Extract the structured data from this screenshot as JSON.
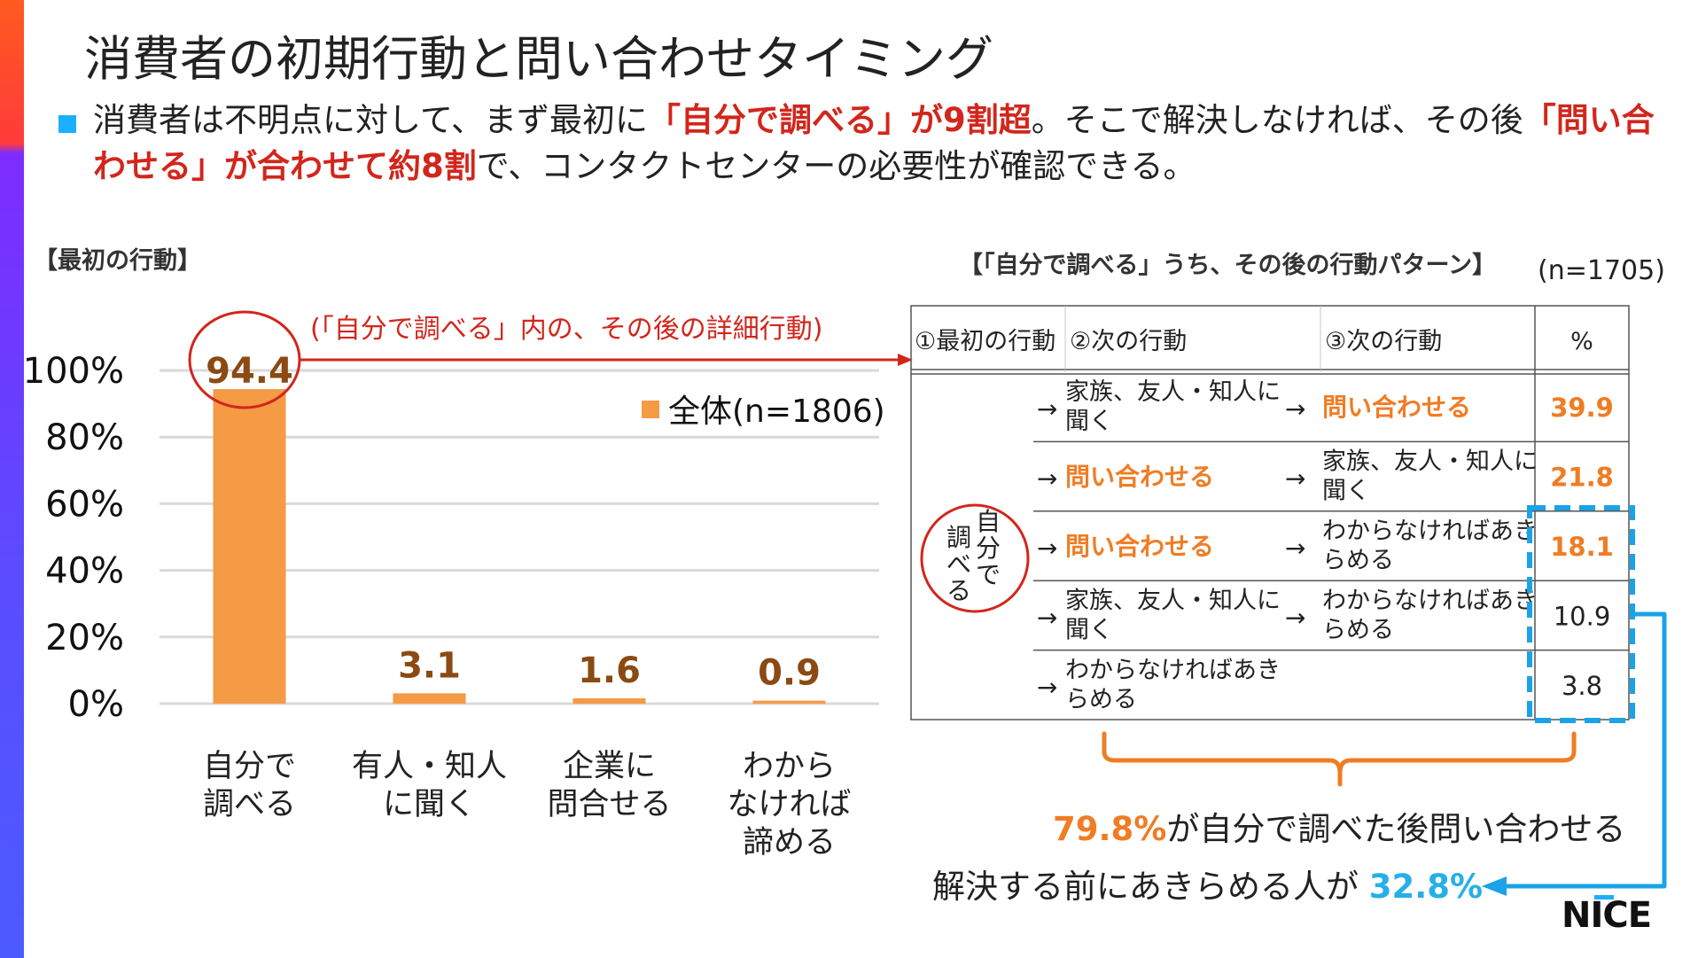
{
  "page": {
    "title": "消費者の初期行動と問い合わせタイミング",
    "lead": [
      {
        "text": "消費者は不明点に対して、まず最初に",
        "red": false
      },
      {
        "text": "「自分で調べる」が9割超",
        "red": true
      },
      {
        "text": "。そこで解決しなければ、その後",
        "red": false
      },
      {
        "text": "「問い合わせる」が合わせて約8割",
        "red": true
      },
      {
        "text": "で、コンタクトセンターの必要性が確認できる。",
        "red": false
      }
    ],
    "left_section_label": "【最初の行動】",
    "right_section_label": "【「自分で調べる」うち、その後の行動パターン】",
    "right_n": "(n=1705)",
    "arrow_caption": "(「自分で調べる」内の、その後の詳細行動)",
    "summary1_pct": "79.8%",
    "summary1_text": "が自分で調べた後問い合わせる",
    "summary2_text": "解決する前にあきらめる人が",
    "summary2_pct": "32.8%",
    "logo": "NICE"
  },
  "colors": {
    "bar": "#f59a45",
    "value_label": "#8b4a12",
    "red": "#d2261c",
    "orange": "#f07c24",
    "blue": "#1aa3e8",
    "grid": "#d9d9d9"
  },
  "chart_data": {
    "type": "bar",
    "categories": [
      [
        "自分で",
        "調べる"
      ],
      [
        "有人・知人",
        "に聞く"
      ],
      [
        "企業に",
        "問合せる"
      ],
      [
        "わから",
        "なければ",
        "諦める"
      ]
    ],
    "series": [
      {
        "name": "全体(n=1806)",
        "values": [
          94.4,
          3.1,
          1.6,
          0.9
        ]
      }
    ],
    "value_labels": [
      "94.4",
      "3.1",
      "1.6",
      "0.9"
    ],
    "y_ticks": [
      "0%",
      "20%",
      "40%",
      "60%",
      "80%",
      "100%"
    ],
    "ylim": [
      0,
      100
    ],
    "grid": true,
    "legend_position": "top-right"
  },
  "table": {
    "headers": [
      "①最初の行動",
      "②次の行動",
      "③次の行動",
      "%"
    ],
    "first_action": "自分で調べる",
    "rows": [
      {
        "next1": "家族、友人・知人に聞く",
        "next1_hl": false,
        "next2": "問い合わせる",
        "next2_hl": true,
        "pct": "39.9",
        "pct_hl": true
      },
      {
        "next1": "問い合わせる",
        "next1_hl": true,
        "next2": "家族、友人・知人に聞く",
        "next2_hl": false,
        "pct": "21.8",
        "pct_hl": true
      },
      {
        "next1": "問い合わせる",
        "next1_hl": true,
        "next2": "わからなければあきらめる",
        "next2_hl": false,
        "pct": "18.1",
        "pct_hl": true
      },
      {
        "next1": "家族、友人・知人に聞く",
        "next1_hl": false,
        "next2": "わからなければあきらめる",
        "next2_hl": false,
        "pct": "10.9",
        "pct_hl": false
      },
      {
        "next1": "わからなければあきらめる",
        "next1_hl": false,
        "next2": "",
        "next2_hl": false,
        "pct": "3.8",
        "pct_hl": false
      }
    ]
  }
}
